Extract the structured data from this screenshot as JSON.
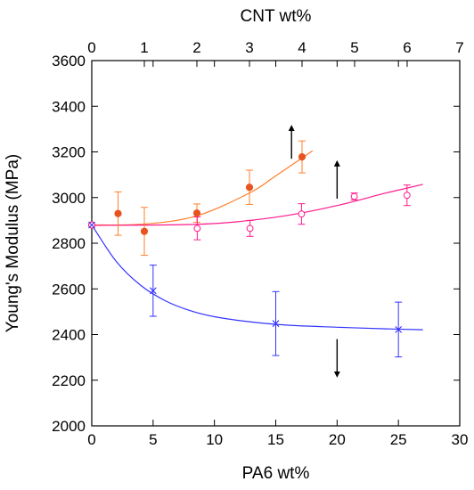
{
  "chart_data": {
    "type": "scatter",
    "bottom_axis": {
      "label": "PA6 wt%",
      "range": [
        0,
        30
      ],
      "ticks": [
        "0",
        "5",
        "10",
        "15",
        "20",
        "25",
        "30"
      ]
    },
    "top_axis": {
      "label": "CNT wt%",
      "range": [
        0,
        7
      ],
      "ticks": [
        "0",
        "1",
        "2",
        "3",
        "4",
        "5",
        "6",
        "7"
      ]
    },
    "left_axis": {
      "label": "Young's Modulus (MPa)",
      "range": [
        2000,
        3600
      ],
      "ticks": [
        "2000",
        "2200",
        "2400",
        "2600",
        "2800",
        "3000",
        "3200",
        "3400",
        "3600"
      ]
    },
    "grid": false,
    "series": [
      {
        "axis": "top",
        "color": "#ff7f2a",
        "marker_color": "#e8531f",
        "marker": "filled-circle",
        "points": [
          {
            "x": 0,
            "y": 2880,
            "err": 0
          },
          {
            "x": 0.5,
            "y": 2930,
            "err": 95
          },
          {
            "x": 1,
            "y": 2852,
            "err": 105
          },
          {
            "x": 2,
            "y": 2932,
            "err": 40
          },
          {
            "x": 3,
            "y": 3045,
            "err": 75
          },
          {
            "x": 4,
            "y": 3178,
            "err": 70
          }
        ],
        "fit": [
          [
            0,
            2880
          ],
          [
            1,
            2884
          ],
          [
            2,
            2920
          ],
          [
            3,
            3020
          ],
          [
            3.5,
            3095
          ],
          [
            4.2,
            3205
          ]
        ],
        "arrow": {
          "x": 3.8,
          "y0": 3170,
          "y1": 3305
        }
      },
      {
        "axis": "bottom",
        "color": "#ff1a8c",
        "marker": "open-circle",
        "points": [
          {
            "x": 0,
            "y": 2880,
            "err": 0
          },
          {
            "x": 8.6,
            "y": 2865,
            "err": 50
          },
          {
            "x": 12.9,
            "y": 2865,
            "err": 35
          },
          {
            "x": 17.1,
            "y": 2928,
            "err": 45
          },
          {
            "x": 21.4,
            "y": 3005,
            "err": 15
          },
          {
            "x": 25.7,
            "y": 3010,
            "err": 45
          }
        ],
        "fit": [
          [
            0,
            2878
          ],
          [
            8,
            2882
          ],
          [
            12,
            2895
          ],
          [
            16,
            2922
          ],
          [
            20,
            2965
          ],
          [
            24,
            3020
          ],
          [
            27,
            3058
          ]
        ],
        "arrow": {
          "x": 20,
          "y0": 2995,
          "y1": 3150
        }
      },
      {
        "axis": "bottom",
        "color": "#3333ff",
        "marker": "x",
        "points": [
          {
            "x": 0,
            "y": 2880,
            "err": 0
          },
          {
            "x": 5,
            "y": 2592,
            "err": 112
          },
          {
            "x": 15,
            "y": 2448,
            "err": 140
          },
          {
            "x": 25,
            "y": 2422,
            "err": 120
          }
        ],
        "fit": [
          [
            0,
            2880
          ],
          [
            2,
            2720
          ],
          [
            4,
            2615
          ],
          [
            6,
            2548
          ],
          [
            8,
            2505
          ],
          [
            10,
            2478
          ],
          [
            13,
            2455
          ],
          [
            16,
            2441
          ],
          [
            20,
            2432
          ],
          [
            24,
            2425
          ],
          [
            27,
            2421
          ]
        ],
        "arrow": {
          "x": 20,
          "y0": 2380,
          "y1": 2225
        }
      }
    ]
  }
}
